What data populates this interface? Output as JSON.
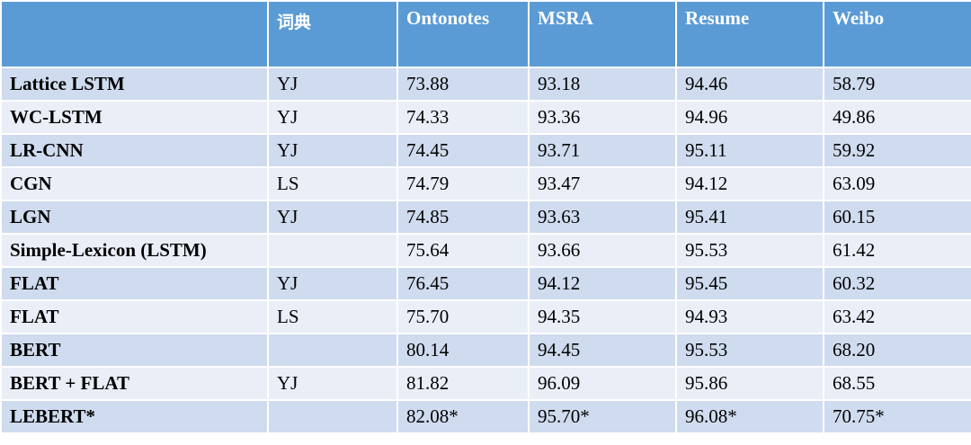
{
  "table": {
    "headers": [
      "",
      "词典",
      "Ontonotes",
      "MSRA",
      "Resume",
      "Weibo"
    ],
    "rows": [
      [
        "Lattice LSTM",
        "YJ",
        "73.88",
        "93.18",
        "94.46",
        "58.79"
      ],
      [
        "WC-LSTM",
        "YJ",
        "74.33",
        "93.36",
        "94.96",
        "49.86"
      ],
      [
        "LR-CNN",
        "YJ",
        "74.45",
        "93.71",
        "95.11",
        "59.92"
      ],
      [
        "CGN",
        "LS",
        "74.79",
        "93.47",
        "94.12",
        "63.09"
      ],
      [
        "LGN",
        "YJ",
        "74.85",
        "93.63",
        "95.41",
        "60.15"
      ],
      [
        "Simple-Lexicon (LSTM)",
        "",
        "75.64",
        "93.66",
        "95.53",
        "61.42"
      ],
      [
        "FLAT",
        "YJ",
        "76.45",
        "94.12",
        "95.45",
        "60.32"
      ],
      [
        "FLAT",
        "LS",
        "75.70",
        "94.35",
        "94.93",
        "63.42"
      ],
      [
        "BERT",
        "",
        "80.14",
        "94.45",
        "95.53",
        "68.20"
      ],
      [
        "BERT + FLAT",
        "YJ",
        "81.82",
        "96.09",
        "95.86",
        "68.55"
      ],
      [
        "LEBERT*",
        "",
        "82.08*",
        "95.70*",
        "96.08*",
        "70.75*"
      ]
    ]
  },
  "colors": {
    "header_bg": "#5b9bd5",
    "row_odd_bg": "#cfdbee",
    "row_even_bg": "#e9eef7",
    "border": "#ffffff"
  }
}
